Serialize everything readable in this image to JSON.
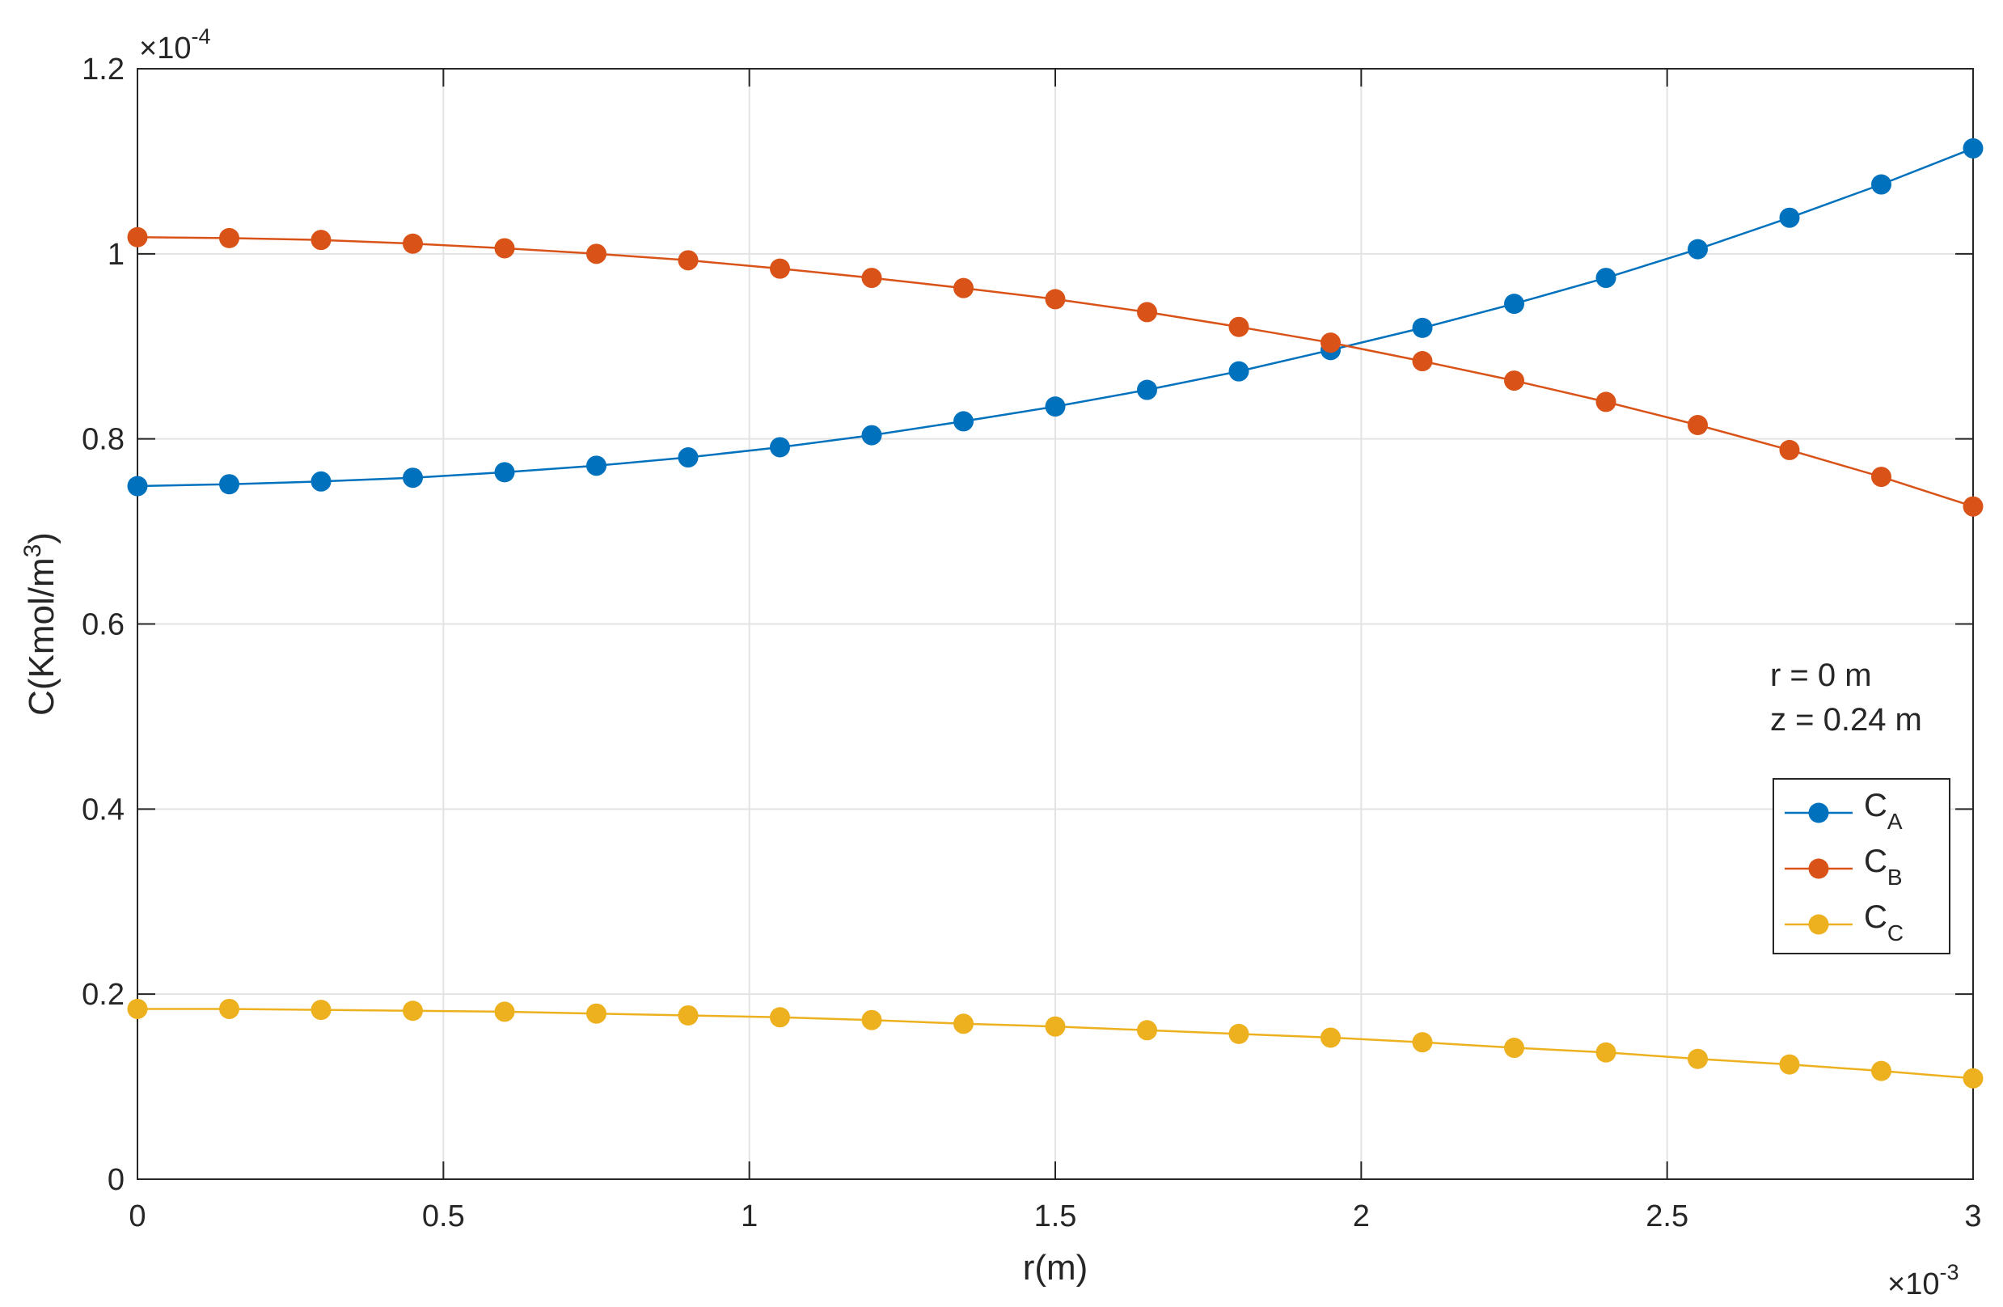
{
  "chart_data": {
    "type": "line",
    "xlabel": "r(m)",
    "ylabel": "C(Kmol/m",
    "ylabel_sup": "3",
    "ylabel_close": ")",
    "x_multiplier": {
      "prefix": "×10",
      "exponent": "-3"
    },
    "y_multiplier": {
      "prefix": "×10",
      "exponent": "-4"
    },
    "xlim": [
      0,
      3
    ],
    "ylim": [
      0,
      1.2
    ],
    "x_ticks": [
      0,
      0.5,
      1,
      1.5,
      2,
      2.5,
      3
    ],
    "x_tick_labels": [
      "0",
      "0.5",
      "1",
      "1.5",
      "2",
      "2.5",
      "3"
    ],
    "y_ticks": [
      0,
      0.2,
      0.4,
      0.6,
      0.8,
      1,
      1.2
    ],
    "y_tick_labels": [
      "0",
      "0.2",
      "0.4",
      "0.6",
      "0.8",
      "1",
      "1.2"
    ],
    "grid": true,
    "legend_position": "right",
    "annotations": [
      "r = 0 m",
      "z = 0.24 m"
    ],
    "x": [
      0,
      0.15,
      0.3,
      0.45,
      0.6,
      0.75,
      0.9,
      1.05,
      1.2,
      1.35,
      1.5,
      1.65,
      1.8,
      1.95,
      2.1,
      2.25,
      2.4,
      2.55,
      2.7,
      2.85,
      3.0
    ],
    "series": [
      {
        "name": "C",
        "subscript": "A",
        "color": "#0072BD",
        "values": [
          0.749,
          0.751,
          0.754,
          0.758,
          0.764,
          0.771,
          0.78,
          0.791,
          0.804,
          0.819,
          0.835,
          0.853,
          0.873,
          0.896,
          0.92,
          0.946,
          0.974,
          1.005,
          1.039,
          1.075,
          1.114
        ]
      },
      {
        "name": "C",
        "subscript": "B",
        "color": "#D95319",
        "values": [
          1.018,
          1.017,
          1.015,
          1.011,
          1.006,
          1.0,
          0.993,
          0.984,
          0.974,
          0.963,
          0.951,
          0.937,
          0.921,
          0.904,
          0.884,
          0.863,
          0.84,
          0.815,
          0.788,
          0.759,
          0.727
        ]
      },
      {
        "name": "C",
        "subscript": "C",
        "color": "#EDB120",
        "values": [
          0.184,
          0.184,
          0.183,
          0.182,
          0.181,
          0.179,
          0.177,
          0.175,
          0.172,
          0.168,
          0.165,
          0.161,
          0.157,
          0.153,
          0.148,
          0.142,
          0.137,
          0.13,
          0.124,
          0.117,
          0.109
        ]
      }
    ]
  }
}
